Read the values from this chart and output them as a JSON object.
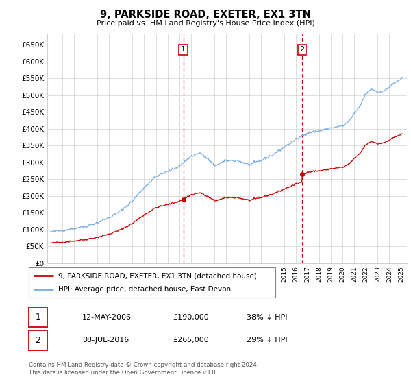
{
  "title": "9, PARKSIDE ROAD, EXETER, EX1 3TN",
  "subtitle": "Price paid vs. HM Land Registry's House Price Index (HPI)",
  "hpi_color": "#7aade0",
  "price_color": "#cc0000",
  "vline_color": "#cc0000",
  "purchase1_x": 2006.36,
  "purchase1_price": 190000,
  "purchase2_x": 2016.52,
  "purchase2_price": 265000,
  "legend_entry1": "9, PARKSIDE ROAD, EXETER, EX1 3TN (detached house)",
  "legend_entry2": "HPI: Average price, detached house, East Devon",
  "row1_label": "1",
  "row1_date": "12-MAY-2006",
  "row1_price": "£190,000",
  "row1_pct": "38% ↓ HPI",
  "row2_label": "2",
  "row2_date": "08-JUL-2016",
  "row2_price": "£265,000",
  "row2_pct": "29% ↓ HPI",
  "footer_line1": "Contains HM Land Registry data © Crown copyright and database right 2024.",
  "footer_line2": "This data is licensed under the Open Government Licence v3.0.",
  "ylim_max": 680000,
  "yticks": [
    0,
    50000,
    100000,
    150000,
    200000,
    250000,
    300000,
    350000,
    400000,
    450000,
    500000,
    550000,
    600000,
    650000
  ],
  "xlim_start": 1994.7,
  "xlim_end": 2025.5,
  "bg_color": "#ffffff",
  "grid_color": "#d0d0d0"
}
